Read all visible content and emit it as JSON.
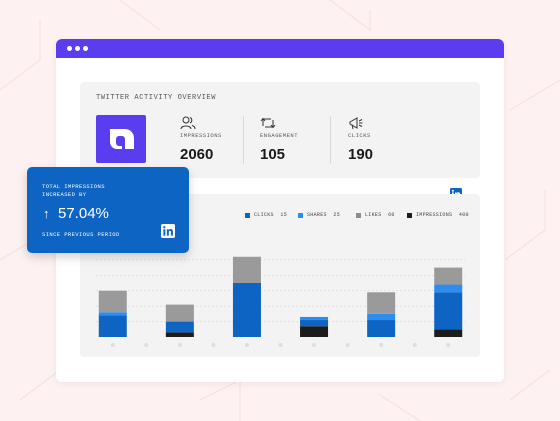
{
  "colors": {
    "accent": "#5b3df0",
    "clicks": "#0d64c3",
    "shares": "#2c8df0",
    "likes": "#9a9a9a",
    "impressions": "#1c1c1c",
    "popup": "#0d64c3"
  },
  "overview": {
    "title": "TWITTER ACTIVITY OVERVIEW",
    "stats": [
      {
        "label": "IMPRESSIONS",
        "value": "2060",
        "icon": "users-icon"
      },
      {
        "label": "ENGAGEMENT",
        "value": "105",
        "icon": "retweet-icon"
      },
      {
        "label": "CLICKS",
        "value": "190",
        "icon": "megaphone-icon"
      }
    ],
    "brand_icon": "linkedin-icon"
  },
  "popup": {
    "line1": "TOTAL IMPRESSIONS",
    "line2": "INCREASED BY",
    "arrow": "↑",
    "value": "57.04%",
    "since": "SINCE PREVIOUS PERIOD",
    "icon": "linkedin-icon"
  },
  "chart_data": {
    "type": "bar",
    "stacked": true,
    "legend": [
      {
        "name": "CLICKS",
        "value": "15"
      },
      {
        "name": "SHARES",
        "value": "25"
      },
      {
        "name": "LIKES",
        "value": "60"
      },
      {
        "name": "IMPRESSIONS",
        "value": "400"
      }
    ],
    "categories": [
      "",
      "",
      "",
      "",
      "",
      "",
      "",
      "",
      "",
      "",
      ""
    ],
    "series": [
      {
        "name": "IMPRESSIONS",
        "values": [
          0,
          0,
          6,
          0,
          0,
          0,
          14,
          0,
          0,
          0,
          10
        ]
      },
      {
        "name": "CLICKS",
        "values": [
          28,
          0,
          14,
          0,
          70,
          0,
          8,
          0,
          22,
          0,
          48
        ]
      },
      {
        "name": "SHARES",
        "values": [
          4,
          0,
          0,
          0,
          0,
          0,
          4,
          0,
          8,
          0,
          10
        ]
      },
      {
        "name": "LIKES",
        "values": [
          28,
          0,
          22,
          0,
          34,
          0,
          0,
          0,
          28,
          0,
          22
        ]
      }
    ],
    "bar_categories": [
      0,
      2,
      4,
      6,
      8,
      10
    ],
    "ylim": [
      0,
      140
    ],
    "grid": true,
    "legend_position": "top-right"
  }
}
